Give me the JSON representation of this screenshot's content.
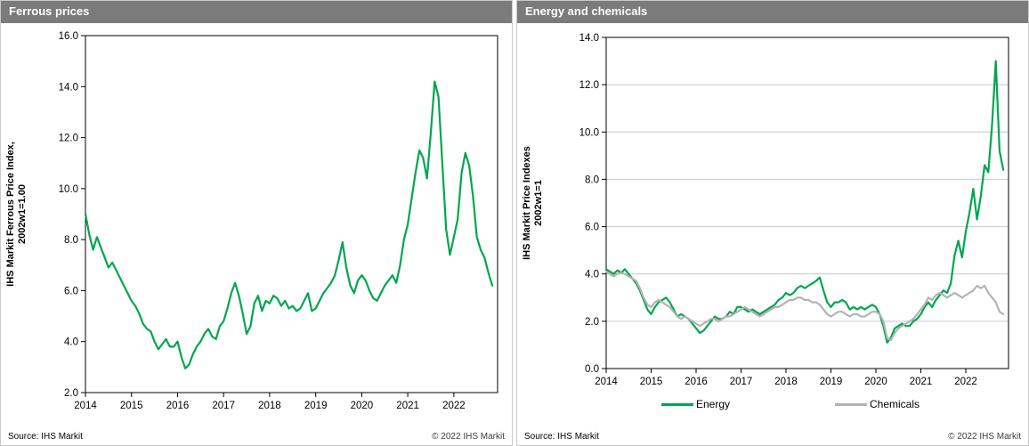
{
  "panels": [
    {
      "title": "Ferrous prices",
      "source": "Source: IHS Markit",
      "copyright": "© 2022  IHS Markit"
    },
    {
      "title": "Energy and chemicals",
      "source": "Source: IHS Markit",
      "copyright": "© 2022  IHS Markit"
    }
  ],
  "colors": {
    "green": "#00a651",
    "gray": "#b3b3b3",
    "header_gray": "#7b7b7b",
    "gridline": "#c8c8c8"
  },
  "chart_data": [
    {
      "type": "line",
      "title": "Ferrous prices",
      "ylabel_lines": [
        "IHS Markit Ferrous Price Index,",
        "2002w1=1.00"
      ],
      "xlabel": "",
      "xlim": [
        2014,
        2022.95
      ],
      "ylim": [
        2.0,
        16.0
      ],
      "x_ticks": [
        2014,
        2015,
        2016,
        2017,
        2018,
        2019,
        2020,
        2021,
        2022
      ],
      "y_ticks": [
        2.0,
        4.0,
        6.0,
        8.0,
        10.0,
        12.0,
        14.0,
        16.0
      ],
      "grid": false,
      "legend": false,
      "series": [
        {
          "name": "Ferrous",
          "color": "#00a651",
          "x_start": 2014.0,
          "x_step": 0.083333,
          "values": [
            9.0,
            8.2,
            7.6,
            8.1,
            7.7,
            7.3,
            6.9,
            7.1,
            6.8,
            6.5,
            6.2,
            5.9,
            5.6,
            5.4,
            5.1,
            4.7,
            4.5,
            4.4,
            4.0,
            3.7,
            3.9,
            4.1,
            3.8,
            3.8,
            4.0,
            3.4,
            2.95,
            3.1,
            3.5,
            3.8,
            4.0,
            4.3,
            4.5,
            4.2,
            4.1,
            4.6,
            4.8,
            5.3,
            5.9,
            6.3,
            5.8,
            5.1,
            4.3,
            4.6,
            5.5,
            5.8,
            5.2,
            5.6,
            5.5,
            5.8,
            5.7,
            5.4,
            5.6,
            5.3,
            5.4,
            5.2,
            5.3,
            5.6,
            5.9,
            5.2,
            5.3,
            5.6,
            5.9,
            6.1,
            6.3,
            6.6,
            7.2,
            7.9,
            6.9,
            6.2,
            5.9,
            6.4,
            6.6,
            6.4,
            6.0,
            5.7,
            5.6,
            5.9,
            6.2,
            6.4,
            6.6,
            6.3,
            7.0,
            8.0,
            8.6,
            9.6,
            10.6,
            11.5,
            11.2,
            10.4,
            12.2,
            14.2,
            13.6,
            11.0,
            8.4,
            7.4,
            8.1,
            8.8,
            10.6,
            11.4,
            10.9,
            9.7,
            8.1,
            7.6,
            7.3,
            6.7,
            6.2
          ]
        }
      ]
    },
    {
      "type": "line",
      "title": "Energy and chemicals",
      "ylabel_lines": [
        "IHS Markit Price Indexes",
        "2002w1=1"
      ],
      "xlabel": "",
      "xlim": [
        2014,
        2022.95
      ],
      "ylim": [
        0.0,
        14.0
      ],
      "x_ticks": [
        2014,
        2015,
        2016,
        2017,
        2018,
        2019,
        2020,
        2021,
        2022
      ],
      "y_ticks": [
        0.0,
        2.0,
        4.0,
        6.0,
        8.0,
        10.0,
        12.0,
        14.0
      ],
      "grid": true,
      "legend": true,
      "series": [
        {
          "name": "Energy",
          "color": "#00a651",
          "x_start": 2014.0,
          "x_step": 0.083333,
          "values": [
            4.2,
            4.1,
            4.0,
            4.15,
            4.05,
            4.2,
            4.0,
            3.8,
            3.6,
            3.3,
            2.9,
            2.5,
            2.3,
            2.6,
            2.8,
            2.9,
            3.0,
            2.8,
            2.5,
            2.2,
            2.3,
            2.2,
            2.1,
            1.9,
            1.7,
            1.5,
            1.6,
            1.8,
            2.0,
            2.2,
            2.1,
            2.1,
            2.2,
            2.4,
            2.3,
            2.6,
            2.6,
            2.5,
            2.4,
            2.5,
            2.4,
            2.3,
            2.4,
            2.5,
            2.6,
            2.7,
            2.9,
            3.0,
            3.2,
            3.1,
            3.2,
            3.4,
            3.5,
            3.4,
            3.5,
            3.6,
            3.7,
            3.85,
            3.3,
            2.8,
            2.6,
            2.8,
            2.8,
            2.9,
            2.8,
            2.5,
            2.6,
            2.5,
            2.6,
            2.5,
            2.6,
            2.7,
            2.6,
            2.3,
            1.8,
            1.1,
            1.3,
            1.7,
            1.8,
            1.9,
            1.8,
            1.8,
            2.0,
            2.1,
            2.3,
            2.6,
            2.8,
            2.6,
            2.9,
            3.1,
            3.3,
            3.2,
            3.6,
            4.8,
            5.4,
            4.7,
            5.8,
            6.6,
            7.6,
            6.3,
            7.3,
            8.6,
            8.3,
            10.3,
            13.0,
            9.2,
            8.4
          ]
        },
        {
          "name": "Chemicals",
          "color": "#b3b3b3",
          "x_start": 2014.0,
          "x_step": 0.083333,
          "values": [
            4.1,
            4.0,
            3.9,
            4.0,
            4.05,
            4.0,
            3.9,
            3.8,
            3.7,
            3.4,
            3.0,
            2.7,
            2.6,
            2.8,
            2.9,
            2.8,
            2.7,
            2.6,
            2.4,
            2.2,
            2.1,
            2.2,
            2.1,
            2.0,
            1.9,
            1.8,
            1.9,
            2.0,
            2.1,
            2.1,
            2.0,
            2.1,
            2.2,
            2.2,
            2.3,
            2.4,
            2.5,
            2.6,
            2.5,
            2.4,
            2.3,
            2.2,
            2.3,
            2.4,
            2.5,
            2.6,
            2.6,
            2.7,
            2.8,
            2.9,
            2.9,
            3.0,
            3.0,
            2.9,
            2.9,
            2.8,
            2.8,
            2.7,
            2.5,
            2.3,
            2.2,
            2.3,
            2.4,
            2.4,
            2.3,
            2.2,
            2.3,
            2.3,
            2.2,
            2.2,
            2.3,
            2.4,
            2.4,
            2.3,
            2.0,
            1.3,
            1.2,
            1.5,
            1.7,
            1.8,
            1.9,
            2.0,
            2.1,
            2.3,
            2.5,
            2.7,
            3.0,
            2.9,
            3.1,
            3.2,
            3.1,
            3.0,
            3.1,
            3.2,
            3.1,
            3.0,
            3.1,
            3.2,
            3.3,
            3.5,
            3.4,
            3.5,
            3.2,
            3.0,
            2.8,
            2.4,
            2.3
          ]
        }
      ]
    }
  ]
}
